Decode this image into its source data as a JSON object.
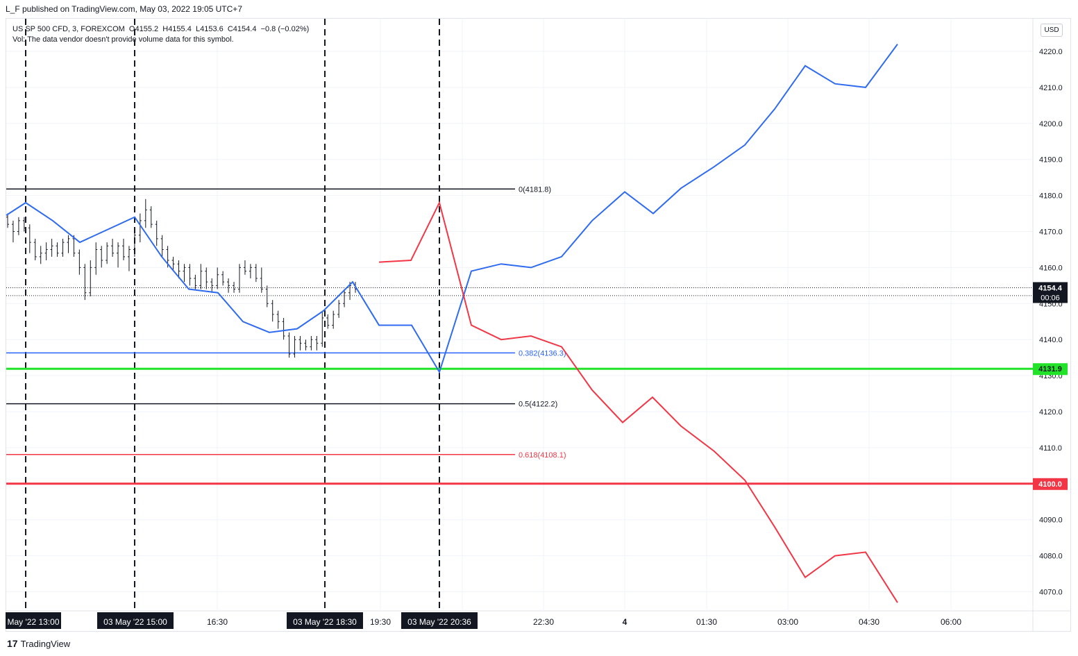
{
  "header": {
    "published_text": "L_F published on TradingView.com, May 03, 2022 19:05 UTC+7"
  },
  "legend": {
    "symbol": "US SP 500 CFD, 3, FOREXCOM",
    "open": "O4155.2",
    "high": "H4155.4",
    "low": "L4153.6",
    "close": "C4154.4",
    "change": "−0.8 (−0.02%)",
    "volume_note": "Vol: The data vendor doesn't provide volume data for this symbol."
  },
  "currency_button": "USD",
  "price_axis": {
    "ticks": [
      "4220.0",
      "4210.0",
      "4200.0",
      "4190.0",
      "4180.0",
      "4170.0",
      "4160.0",
      "4150.0",
      "4140.0",
      "4130.0",
      "4120.0",
      "4110.0",
      "4100.0",
      "4090.0",
      "4080.0",
      "4070.0"
    ],
    "current_price_label": "4154.4",
    "countdown_label": "00:06",
    "green_level_label": "4131.9",
    "red_level_label": "4100.0"
  },
  "time_axis": {
    "ticks": [
      "16:30",
      "19:30",
      "22:30",
      "4",
      "01:30",
      "03:00",
      "04:30",
      "06:00"
    ],
    "highlight_labels": [
      "May '22   13:00",
      "03 May '22   15:00",
      "03 May '22   18:30",
      "03 May '22   20:36"
    ]
  },
  "fib_levels": [
    {
      "label": "0(4181.8)",
      "color": "#131722"
    },
    {
      "label": "0.382(4136.3)",
      "color": "#2962ff"
    },
    {
      "label": "0.5(4122.2)",
      "color": "#131722"
    },
    {
      "label": "0.618(4108.1)",
      "color": "#f23645"
    }
  ],
  "colors": {
    "blue_line": "#2f6bf0",
    "red_line": "#f23645",
    "green_level": "#22e22a",
    "red_level": "#f23645",
    "candle": "#131722"
  },
  "chart_data": {
    "type": "line",
    "symbol": "US SP 500 CFD",
    "timeframe": "3",
    "y_range": [
      4065,
      4225
    ],
    "horizontal_levels": [
      4181.8,
      4136.3,
      4122.2,
      4108.1,
      4131.9,
      4100.0,
      4154.4
    ],
    "series": [
      {
        "color": "#2f6bf0",
        "values": [
          4174.5,
          4178,
          4173,
          4167,
          4174,
          4163,
          4154,
          4153,
          4145,
          4142,
          4143,
          4148,
          4156,
          4144,
          4144,
          4131,
          4159,
          4161,
          4160,
          4163,
          4173,
          4181,
          4175,
          4182,
          4188,
          4194,
          4204,
          4216,
          4211,
          4210,
          4222
        ]
      },
      {
        "color": "#f23645",
        "values": [
          4161.5,
          4162,
          4178,
          4144,
          4140,
          4141,
          4138,
          4126,
          4117,
          4124,
          4116,
          4109,
          4101,
          4088,
          4074,
          4080,
          4081,
          4067
        ]
      }
    ]
  },
  "footer": {
    "brand": "TradingView",
    "logo_glyph": "17"
  }
}
